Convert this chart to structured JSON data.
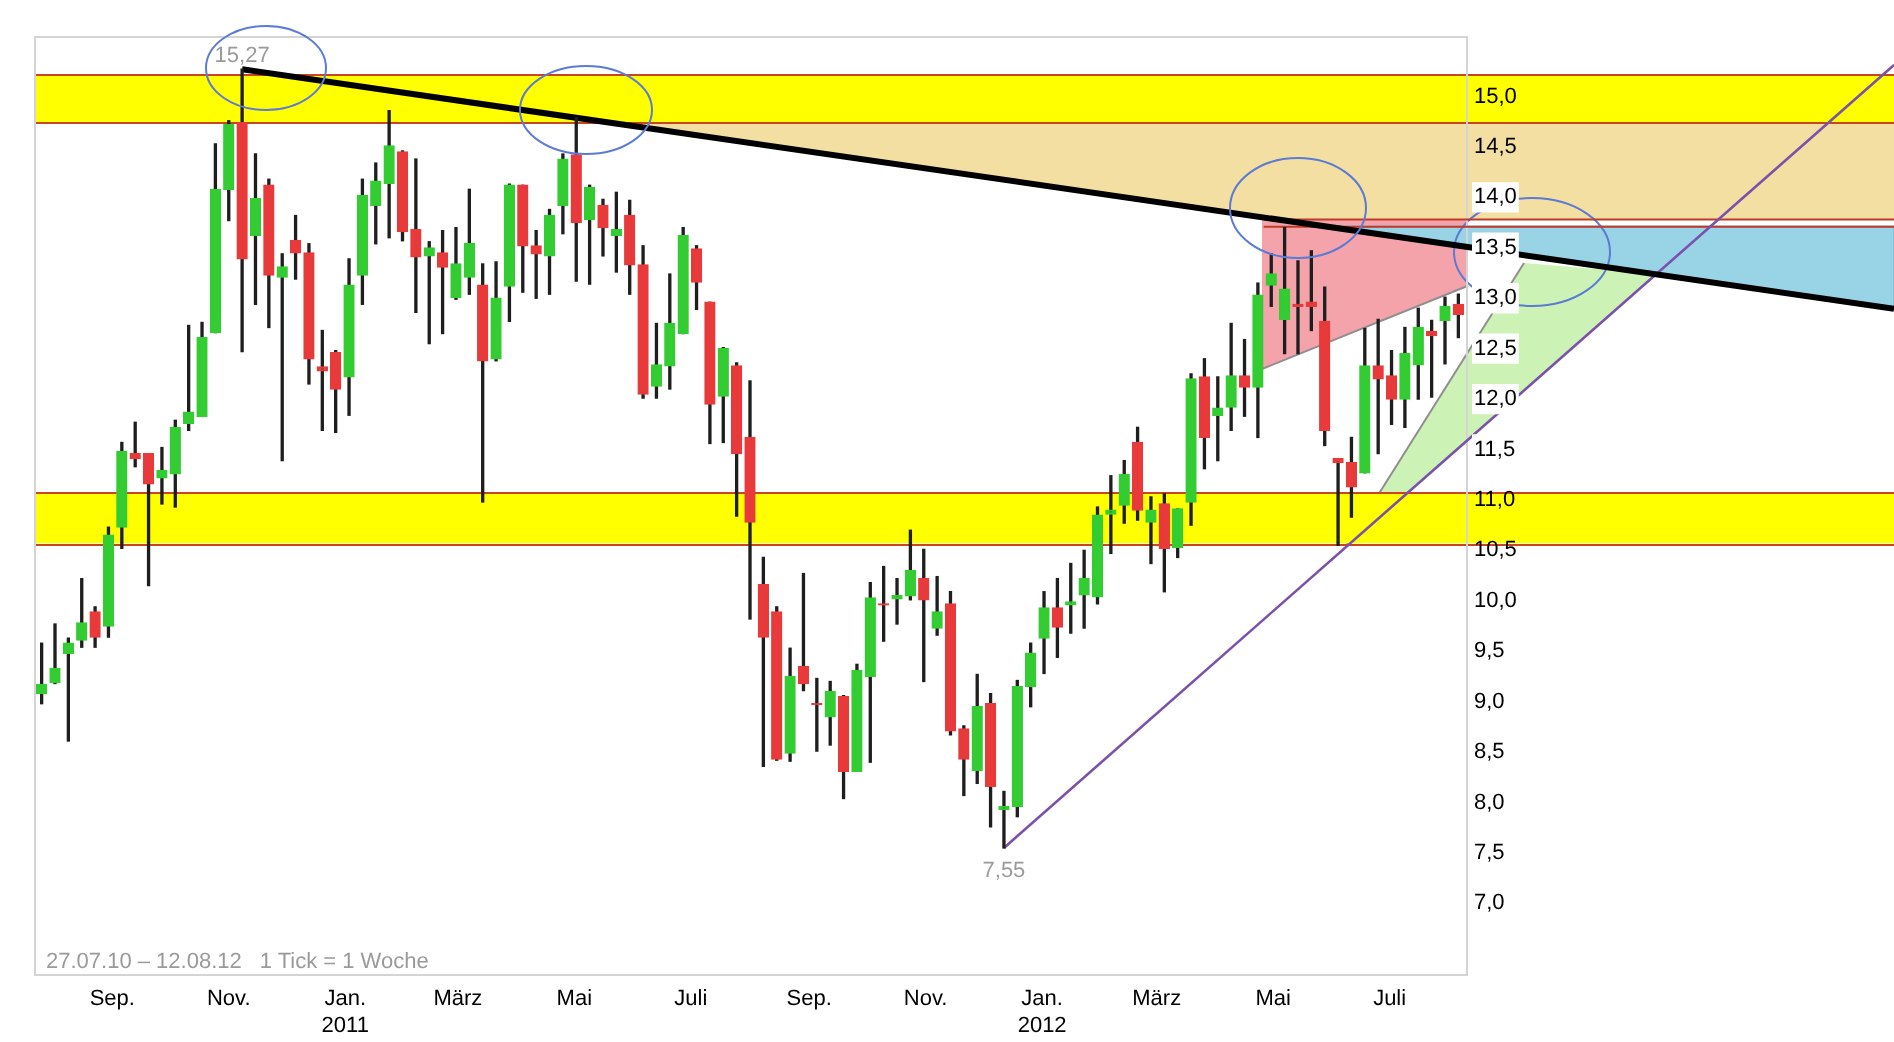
{
  "chart_data": {
    "type": "candlestick",
    "x": [
      "2010-07-26",
      "2010-08-02",
      "2010-08-09",
      "2010-08-16",
      "2010-08-23",
      "2010-08-30",
      "2010-09-06",
      "2010-09-13",
      "2010-09-20",
      "2010-09-27",
      "2010-10-04",
      "2010-10-11",
      "2010-10-18",
      "2010-10-25",
      "2010-11-01",
      "2010-11-08",
      "2010-11-15",
      "2010-11-22",
      "2010-11-29",
      "2010-12-06",
      "2010-12-13",
      "2010-12-20",
      "2010-12-27",
      "2011-01-03",
      "2011-01-10",
      "2011-01-17",
      "2011-01-24",
      "2011-01-31",
      "2011-02-07",
      "2011-02-14",
      "2011-02-21",
      "2011-02-28",
      "2011-03-07",
      "2011-03-14",
      "2011-03-21",
      "2011-03-28",
      "2011-04-04",
      "2011-04-11",
      "2011-04-18",
      "2011-04-25",
      "2011-05-02",
      "2011-05-09",
      "2011-05-16",
      "2011-05-23",
      "2011-05-30",
      "2011-06-06",
      "2011-06-13",
      "2011-06-20",
      "2011-06-27",
      "2011-07-04",
      "2011-07-11",
      "2011-07-18",
      "2011-07-25",
      "2011-08-01",
      "2011-08-08",
      "2011-08-15",
      "2011-08-22",
      "2011-08-29",
      "2011-09-05",
      "2011-09-12",
      "2011-09-19",
      "2011-09-26",
      "2011-10-03",
      "2011-10-10",
      "2011-10-17",
      "2011-10-24",
      "2011-10-31",
      "2011-11-07",
      "2011-11-14",
      "2011-11-21",
      "2011-11-28",
      "2011-12-05",
      "2011-12-12",
      "2011-12-19",
      "2011-12-26",
      "2012-01-02",
      "2012-01-09",
      "2012-01-16",
      "2012-01-23",
      "2012-01-30",
      "2012-02-06",
      "2012-02-13",
      "2012-02-20",
      "2012-02-27",
      "2012-03-05",
      "2012-03-12",
      "2012-03-19",
      "2012-03-26",
      "2012-04-02",
      "2012-04-09",
      "2012-04-16",
      "2012-04-23",
      "2012-04-30",
      "2012-05-07",
      "2012-05-14",
      "2012-05-21",
      "2012-05-28",
      "2012-06-04",
      "2012-06-11",
      "2012-06-18",
      "2012-06-25",
      "2012-07-02",
      "2012-07-09",
      "2012-07-16",
      "2012-07-23",
      "2012-07-30",
      "2012-08-06"
    ],
    "ohlc": [
      [
        9.08,
        9.58,
        8.98,
        9.17
      ],
      [
        9.19,
        9.77,
        9.18,
        9.33
      ],
      [
        9.48,
        9.63,
        8.61,
        9.58
      ],
      [
        9.61,
        10.22,
        9.54,
        9.78
      ],
      [
        9.89,
        9.94,
        9.54,
        9.64
      ],
      [
        9.75,
        10.73,
        9.64,
        10.65
      ],
      [
        10.73,
        11.57,
        10.52,
        11.48
      ],
      [
        11.46,
        11.77,
        11.33,
        11.41
      ],
      [
        11.46,
        11.46,
        10.15,
        11.16
      ],
      [
        11.22,
        11.52,
        10.96,
        11.29
      ],
      [
        11.26,
        11.79,
        10.93,
        11.72
      ],
      [
        11.76,
        12.73,
        11.69,
        11.87
      ],
      [
        11.83,
        12.76,
        11.83,
        12.61
      ],
      [
        12.66,
        14.53,
        12.66,
        14.08
      ],
      [
        14.08,
        14.76,
        13.77,
        14.72
      ],
      [
        14.74,
        15.27,
        12.47,
        13.39
      ],
      [
        13.62,
        14.43,
        12.94,
        13.99
      ],
      [
        14.12,
        14.18,
        12.71,
        13.23
      ],
      [
        13.21,
        13.44,
        11.39,
        13.31
      ],
      [
        13.57,
        13.82,
        13.19,
        13.45
      ],
      [
        13.45,
        13.54,
        12.15,
        12.4
      ],
      [
        12.32,
        12.68,
        11.69,
        12.28
      ],
      [
        12.46,
        12.48,
        11.67,
        12.1
      ],
      [
        12.22,
        13.39,
        11.84,
        13.13
      ],
      [
        13.23,
        14.18,
        12.94,
        14.02
      ],
      [
        13.92,
        14.34,
        13.54,
        14.16
      ],
      [
        14.14,
        14.86,
        13.6,
        14.51
      ],
      [
        14.45,
        14.46,
        13.57,
        13.66
      ],
      [
        13.68,
        14.38,
        12.86,
        13.41
      ],
      [
        13.42,
        13.56,
        12.55,
        13.5
      ],
      [
        13.45,
        13.67,
        12.65,
        13.31
      ],
      [
        13.01,
        13.7,
        12.99,
        13.34
      ],
      [
        13.21,
        14.08,
        13.04,
        13.54
      ],
      [
        13.13,
        13.34,
        10.98,
        12.38
      ],
      [
        12.4,
        13.36,
        12.38,
        13.0
      ],
      [
        13.12,
        14.13,
        12.77,
        14.12
      ],
      [
        14.12,
        14.12,
        13.06,
        13.52
      ],
      [
        13.52,
        13.67,
        13.0,
        13.44
      ],
      [
        13.42,
        13.88,
        13.04,
        13.82
      ],
      [
        13.92,
        14.43,
        13.64,
        14.38
      ],
      [
        14.42,
        14.79,
        13.17,
        13.75
      ],
      [
        13.78,
        14.12,
        13.14,
        14.1
      ],
      [
        13.92,
        13.98,
        13.42,
        13.7
      ],
      [
        13.62,
        14.05,
        13.26,
        13.68
      ],
      [
        13.82,
        13.97,
        13.04,
        13.33
      ],
      [
        13.33,
        13.52,
        12.01,
        12.05
      ],
      [
        12.13,
        12.75,
        12.01,
        12.34
      ],
      [
        12.33,
        13.24,
        12.1,
        12.75
      ],
      [
        12.65,
        13.7,
        12.65,
        13.62
      ],
      [
        13.49,
        13.52,
        12.89,
        13.16
      ],
      [
        12.96,
        12.96,
        11.56,
        11.95
      ],
      [
        12.03,
        12.51,
        11.57,
        12.5
      ],
      [
        12.33,
        12.36,
        10.84,
        11.46
      ],
      [
        11.62,
        12.18,
        9.82,
        10.78
      ],
      [
        10.16,
        10.43,
        8.36,
        9.64
      ],
      [
        9.89,
        9.94,
        8.42,
        8.43
      ],
      [
        8.49,
        9.53,
        8.41,
        9.25
      ],
      [
        9.35,
        10.27,
        9.11,
        9.18
      ],
      [
        8.98,
        9.23,
        8.51,
        8.97
      ],
      [
        8.85,
        9.2,
        8.57,
        9.1
      ],
      [
        9.05,
        9.06,
        8.04,
        8.31
      ],
      [
        8.31,
        9.37,
        8.31,
        9.31
      ],
      [
        9.25,
        10.18,
        8.4,
        10.03
      ],
      [
        9.97,
        10.34,
        9.6,
        9.96
      ],
      [
        10.02,
        10.22,
        9.77,
        10.05
      ],
      [
        10.05,
        10.7,
        10.01,
        10.3
      ],
      [
        10.22,
        10.51,
        9.2,
        10.01
      ],
      [
        9.73,
        10.24,
        9.66,
        9.89
      ],
      [
        9.97,
        10.09,
        8.67,
        8.71
      ],
      [
        8.73,
        8.76,
        8.07,
        8.43
      ],
      [
        8.32,
        9.27,
        8.19,
        8.95
      ],
      [
        8.98,
        9.08,
        7.76,
        8.16
      ],
      [
        7.93,
        8.11,
        7.55,
        7.96
      ],
      [
        7.96,
        9.21,
        7.86,
        9.15
      ],
      [
        9.15,
        9.58,
        8.95,
        9.48
      ],
      [
        9.63,
        10.09,
        9.28,
        9.93
      ],
      [
        9.93,
        10.22,
        9.44,
        9.74
      ],
      [
        9.96,
        10.37,
        9.68,
        9.99
      ],
      [
        10.06,
        10.5,
        9.73,
        10.22
      ],
      [
        10.04,
        10.93,
        9.97,
        10.85
      ],
      [
        10.86,
        11.24,
        10.47,
        10.9
      ],
      [
        10.95,
        11.39,
        10.77,
        11.25
      ],
      [
        11.57,
        11.72,
        10.8,
        10.9
      ],
      [
        10.78,
        11.03,
        10.37,
        10.9
      ],
      [
        10.96,
        11.06,
        10.09,
        10.52
      ],
      [
        10.53,
        10.91,
        10.43,
        10.91
      ],
      [
        10.98,
        12.25,
        10.75,
        12.2
      ],
      [
        12.22,
        12.4,
        11.31,
        11.62
      ],
      [
        11.84,
        12.22,
        11.39,
        11.91
      ],
      [
        11.92,
        12.75,
        11.69,
        12.23
      ],
      [
        12.23,
        12.59,
        11.83,
        12.12
      ],
      [
        12.12,
        13.15,
        11.62,
        13.03
      ],
      [
        13.13,
        13.44,
        12.92,
        13.24
      ],
      [
        12.79,
        13.7,
        12.45,
        13.09
      ],
      [
        12.94,
        13.37,
        12.45,
        12.92
      ],
      [
        12.96,
        13.47,
        12.68,
        12.92
      ],
      [
        12.77,
        13.11,
        11.54,
        11.69
      ],
      [
        11.41,
        11.41,
        10.55,
        11.37
      ],
      [
        11.37,
        11.62,
        10.83,
        11.13
      ],
      [
        11.27,
        12.7,
        11.27,
        12.33
      ],
      [
        12.33,
        12.79,
        11.46,
        12.2
      ],
      [
        12.23,
        12.48,
        11.75,
        12.0
      ],
      [
        12.0,
        12.71,
        11.72,
        12.45
      ],
      [
        12.34,
        12.9,
        12.0,
        12.71
      ],
      [
        12.67,
        12.78,
        12.02,
        12.63
      ],
      [
        12.78,
        13.01,
        12.35,
        12.92
      ],
      [
        12.94,
        13.04,
        12.61,
        12.84
      ]
    ],
    "colors": [
      "#33cc33",
      "#33cc33",
      "#33cc33",
      "#33cc33",
      "#e83a3a",
      "#33cc33",
      "#33cc33",
      "#e83a3a",
      "#e83a3a",
      "#33cc33",
      "#33cc33",
      "#33cc33",
      "#33cc33",
      "#33cc33",
      "#33cc33",
      "#e83a3a",
      "#33cc33",
      "#e83a3a",
      "#33cc33",
      "#e83a3a",
      "#e83a3a",
      "#e83a3a",
      "#e83a3a",
      "#33cc33",
      "#33cc33",
      "#33cc33",
      "#33cc33",
      "#e83a3a",
      "#e83a3a",
      "#33cc33",
      "#e83a3a",
      "#33cc33",
      "#33cc33",
      "#e83a3a",
      "#33cc33",
      "#33cc33",
      "#e83a3a",
      "#e83a3a",
      "#33cc33",
      "#33cc33",
      "#e83a3a",
      "#33cc33",
      "#e83a3a",
      "#33cc33",
      "#e83a3a",
      "#e83a3a",
      "#33cc33",
      "#33cc33",
      "#33cc33",
      "#e83a3a",
      "#e83a3a",
      "#33cc33",
      "#e83a3a",
      "#e83a3a",
      "#e83a3a",
      "#e83a3a",
      "#33cc33",
      "#e83a3a",
      "#e83a3a",
      "#33cc33",
      "#e83a3a",
      "#33cc33",
      "#33cc33",
      "#e83a3a",
      "#33cc33",
      "#33cc33",
      "#e83a3a",
      "#33cc33",
      "#e83a3a",
      "#e83a3a",
      "#33cc33",
      "#e83a3a",
      "#33cc33",
      "#33cc33",
      "#33cc33",
      "#33cc33",
      "#e83a3a",
      "#33cc33",
      "#33cc33",
      "#33cc33",
      "#33cc33",
      "#33cc33",
      "#e83a3a",
      "#33cc33",
      "#e83a3a",
      "#33cc33",
      "#33cc33",
      "#e83a3a",
      "#33cc33",
      "#33cc33",
      "#e83a3a",
      "#33cc33",
      "#33cc33",
      "#33cc33",
      "#e83a3a",
      "#e83a3a",
      "#e83a3a",
      "#e83a3a",
      "#e83a3a",
      "#33cc33",
      "#e83a3a",
      "#e83a3a",
      "#33cc33",
      "#33cc33",
      "#e83a3a",
      "#33cc33",
      "#e83a3a"
    ],
    "series": [
      {
        "type": "line",
        "color": "#000000",
        "x": [
          "2010-11-08",
          "2012-08-10"
        ],
        "values": [
          15.27,
          13.51
        ]
      },
      {
        "type": "line",
        "color": "#7b52ab",
        "x": [
          "2011-12-12",
          "2012-08-10"
        ],
        "values": [
          7.55,
          11.58
        ]
      },
      {
        "type": "line",
        "color": "#c0392b",
        "x": [
          "2012-04-26",
          "2012-08-10"
        ],
        "values": [
          13.78,
          13.78
        ]
      },
      {
        "type": "line",
        "color": "#c0392b",
        "x": [
          "2012-04-26",
          "2012-08-10"
        ],
        "values": [
          13.71,
          13.71
        ]
      }
    ],
    "xlim": [
      "2010-07-22",
      "2012-08-10"
    ],
    "xticks": [
      {
        "value": "2010-09-01",
        "label": "Sep."
      },
      {
        "value": "2010-11-01",
        "label": "Nov."
      },
      {
        "value": "2011-01-01",
        "label": "Jan.\n2011"
      },
      {
        "value": "2011-03-01",
        "label": "März"
      },
      {
        "value": "2011-05-01",
        "label": "Mai"
      },
      {
        "value": "2011-07-01",
        "label": "Juli"
      },
      {
        "value": "2011-09-01",
        "label": "Sep."
      },
      {
        "value": "2011-11-01",
        "label": "Nov."
      },
      {
        "value": "2012-01-01",
        "label": "Jan.\n2012"
      },
      {
        "value": "2012-03-01",
        "label": "März"
      },
      {
        "value": "2012-05-01",
        "label": "Mai"
      },
      {
        "value": "2012-07-01",
        "label": "Juli"
      }
    ],
    "ylim": [
      6.3,
      15.6
    ],
    "yticks": [
      {
        "value": 7,
        "label": "7,0"
      },
      {
        "value": 7.5,
        "label": "7,5"
      },
      {
        "value": 8,
        "label": "8,0"
      },
      {
        "value": 8.5,
        "label": "8,5"
      },
      {
        "value": 9,
        "label": "9,0"
      },
      {
        "value": 9.5,
        "label": "9,5"
      },
      {
        "value": 10,
        "label": "10,0"
      },
      {
        "value": 10.5,
        "label": "10,5"
      },
      {
        "value": 11,
        "label": "11,0"
      },
      {
        "value": 11.5,
        "label": "11,5"
      },
      {
        "value": 12,
        "label": "12,0"
      },
      {
        "value": 12.5,
        "label": "12,5"
      },
      {
        "value": 13,
        "label": "13,0"
      },
      {
        "value": 13.5,
        "label": "13,5"
      },
      {
        "value": 14,
        "label": "14,0"
      },
      {
        "value": 14.5,
        "label": "14,5"
      },
      {
        "value": 15,
        "label": "15,0"
      }
    ],
    "bands": [
      {
        "axis": "y",
        "from": 14.74,
        "to": 15.22,
        "color": "#ffff00"
      },
      {
        "axis": "y",
        "from": 10.57,
        "to": 11.08,
        "color": "#ffff00"
      }
    ],
    "annotations": [
      "27.07.10 – 12.08.12",
      "1 Tick = 1 Woche",
      {
        "text": "15,27",
        "x": "2010-11-08",
        "y": 15.27
      },
      {
        "text": "7,55",
        "x": "2011-12-12",
        "y": 7.55
      }
    ],
    "legend": false,
    "grid": false
  }
}
